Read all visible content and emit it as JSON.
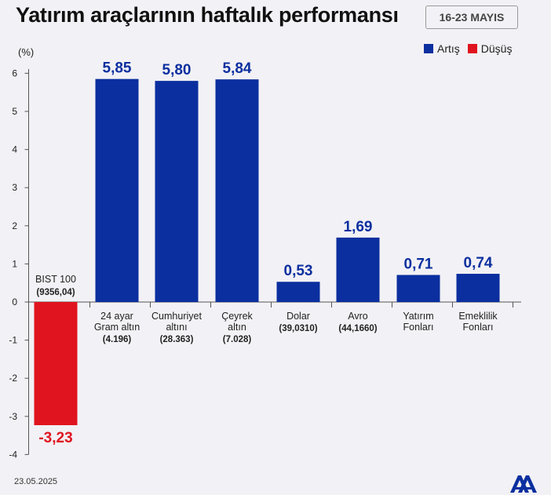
{
  "header": {
    "title": "Yatırım araçlarının haftalık performansı",
    "date_range": "16-23 MAYIS"
  },
  "legend": {
    "items": [
      {
        "label": "Artış",
        "color": "#0b2f9f"
      },
      {
        "label": "Düşüş",
        "color": "#e0141e"
      }
    ]
  },
  "footer": {
    "date": "23.05.2025",
    "logo_icon": "aa-logo-icon"
  },
  "chart_data": {
    "type": "bar",
    "unit_label": "(%)",
    "ylim": [
      -4,
      6.2
    ],
    "yticks": [
      "6",
      "5",
      "4",
      "3",
      "2",
      "1",
      "0",
      "-1",
      "-2",
      "-3",
      "-4"
    ],
    "grid": false,
    "legend_position": "top-right",
    "colors": {
      "positive": "#0b2f9f",
      "negative": "#e0141e"
    },
    "categories": [
      {
        "name_lines": [
          "BIST 100"
        ],
        "sub": "(9356,04)",
        "value": -3.23,
        "value_label": "-3,23"
      },
      {
        "name_lines": [
          "24 ayar",
          "Gram altın"
        ],
        "sub": "(4.196)",
        "value": 5.85,
        "value_label": "5,85"
      },
      {
        "name_lines": [
          "Cumhuriyet",
          "altını"
        ],
        "sub": "(28.363)",
        "value": 5.8,
        "value_label": "5,80"
      },
      {
        "name_lines": [
          "Çeyrek",
          "altın"
        ],
        "sub": "(7.028)",
        "value": 5.84,
        "value_label": "5,84"
      },
      {
        "name_lines": [
          "Dolar"
        ],
        "sub": "(39,0310)",
        "value": 0.53,
        "value_label": "0,53"
      },
      {
        "name_lines": [
          "Avro"
        ],
        "sub": "(44,1660)",
        "value": 1.69,
        "value_label": "1,69"
      },
      {
        "name_lines": [
          "Yatırım",
          "Fonları"
        ],
        "sub": "",
        "value": 0.71,
        "value_label": "0,71"
      },
      {
        "name_lines": [
          "Emeklilik",
          "Fonları"
        ],
        "sub": "",
        "value": 0.74,
        "value_label": "0,74"
      }
    ]
  }
}
